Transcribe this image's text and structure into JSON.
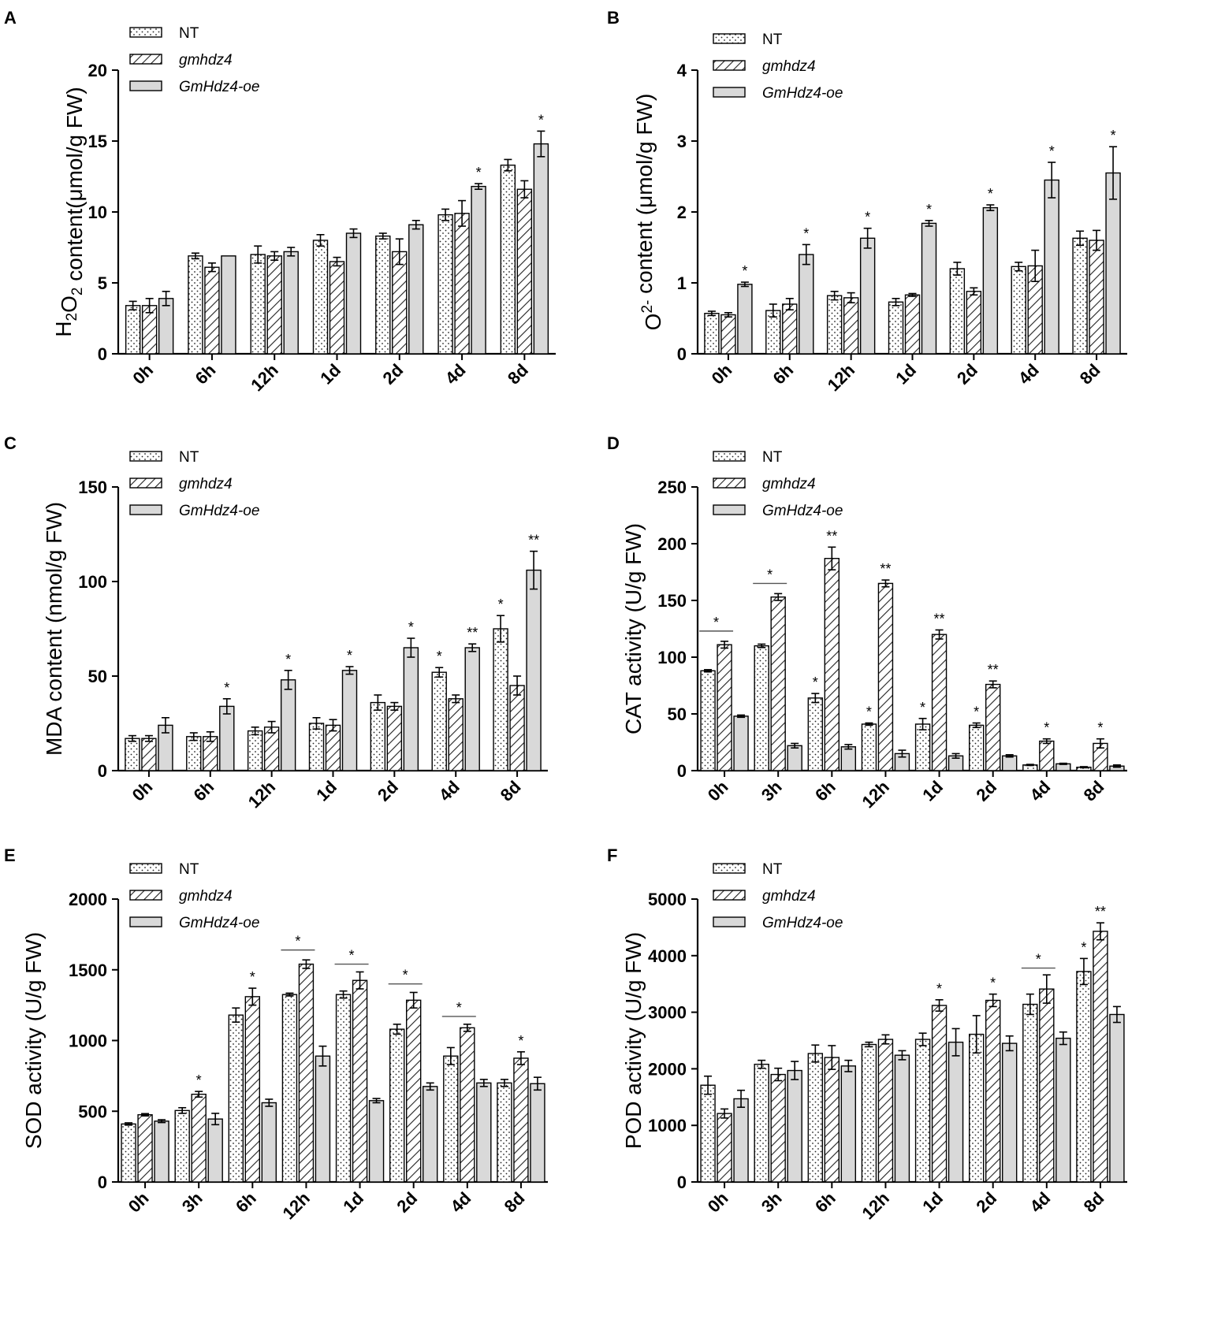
{
  "figure": {
    "series_names": [
      "NT",
      "gmhdz4",
      "GmHdz4-oe"
    ],
    "colors": {
      "bar_fill": "#ffffff",
      "oe_fill": "#d9d9d9",
      "ink": "#000000",
      "pattern_ink": "#222222"
    },
    "icons": {
      "NT": "dotted-pattern",
      "gmhdz4": "hatched-pattern",
      "GmHdz4-oe": "solid-gray"
    }
  },
  "chart_data": [
    {
      "id": "A",
      "type": "bar",
      "panel_letter": "A",
      "ylabel_parts": [
        {
          "t": "H",
          "s": ""
        },
        {
          "t": "2",
          "s": "sub"
        },
        {
          "t": "O",
          "s": ""
        },
        {
          "t": "2",
          "s": "sub"
        },
        {
          "t": " content(μmol/g FW)",
          "s": ""
        }
      ],
      "categories": [
        "0h",
        "6h",
        "12h",
        "1d",
        "2d",
        "4d",
        "8d"
      ],
      "ylim": [
        0,
        20
      ],
      "yticks": [
        0,
        5,
        10,
        15,
        20
      ],
      "legend": [
        "NT",
        "gmhdz4",
        "GmHdz4-oe"
      ],
      "series": [
        {
          "name": "NT",
          "values": [
            3.4,
            6.9,
            7.0,
            8.0,
            8.3,
            9.8,
            13.3
          ],
          "errors": [
            0.3,
            0.2,
            0.6,
            0.4,
            0.2,
            0.4,
            0.4
          ],
          "sig": [
            "",
            "",
            "",
            "",
            "",
            "",
            ""
          ]
        },
        {
          "name": "gmhdz4",
          "values": [
            3.4,
            6.1,
            6.9,
            6.5,
            7.2,
            9.9,
            11.6
          ],
          "errors": [
            0.5,
            0.3,
            0.3,
            0.3,
            0.9,
            0.9,
            0.6
          ],
          "sig": [
            "",
            "",
            "",
            "",
            "",
            "",
            ""
          ]
        },
        {
          "name": "GmHdz4-oe",
          "values": [
            3.9,
            6.9,
            7.2,
            8.5,
            9.1,
            11.8,
            14.8
          ],
          "errors": [
            0.5,
            0.0,
            0.3,
            0.3,
            0.3,
            0.2,
            0.9
          ],
          "sig": [
            "",
            "",
            "",
            "",
            "",
            "*",
            "*"
          ]
        }
      ],
      "brackets": []
    },
    {
      "id": "B",
      "type": "bar",
      "panel_letter": "B",
      "ylabel_parts": [
        {
          "t": "O",
          "s": ""
        },
        {
          "t": "2-",
          "s": "sup"
        },
        {
          "t": " content (μmol/g FW)",
          "s": ""
        }
      ],
      "categories": [
        "0h",
        "6h",
        "12h",
        "1d",
        "2d",
        "4d",
        "8d"
      ],
      "ylim": [
        0,
        4
      ],
      "yticks": [
        0,
        1,
        2,
        3,
        4
      ],
      "legend": [
        "NT",
        "gmhdz4",
        "GmHdz4-oe"
      ],
      "series": [
        {
          "name": "NT",
          "values": [
            0.57,
            0.61,
            0.82,
            0.73,
            1.2,
            1.23,
            1.63
          ],
          "errors": [
            0.03,
            0.09,
            0.06,
            0.05,
            0.09,
            0.06,
            0.1
          ],
          "sig": [
            "",
            "",
            "",
            "",
            "",
            "",
            ""
          ]
        },
        {
          "name": "gmhdz4",
          "values": [
            0.55,
            0.7,
            0.79,
            0.83,
            0.88,
            1.24,
            1.6
          ],
          "errors": [
            0.03,
            0.08,
            0.07,
            0.02,
            0.05,
            0.22,
            0.14
          ],
          "sig": [
            "",
            "",
            "",
            "",
            "",
            "",
            ""
          ]
        },
        {
          "name": "GmHdz4-oe",
          "values": [
            0.98,
            1.4,
            1.63,
            1.84,
            2.06,
            2.45,
            2.55
          ],
          "errors": [
            0.03,
            0.14,
            0.14,
            0.04,
            0.04,
            0.25,
            0.37
          ],
          "sig": [
            "*",
            "*",
            "*",
            "*",
            "*",
            "*",
            "*"
          ]
        }
      ],
      "brackets": []
    },
    {
      "id": "C",
      "type": "bar",
      "panel_letter": "C",
      "ylabel_parts": [
        {
          "t": "MDA content (nmol/g FW)",
          "s": ""
        }
      ],
      "categories": [
        "0h",
        "6h",
        "12h",
        "1d",
        "2d",
        "4d",
        "8d"
      ],
      "ylim": [
        0,
        150
      ],
      "yticks": [
        0,
        50,
        100,
        150
      ],
      "legend": [
        "NT",
        "gmhdz4",
        "GmHdz4-oe"
      ],
      "series": [
        {
          "name": "NT",
          "values": [
            17,
            18,
            21,
            25,
            36,
            52,
            75
          ],
          "errors": [
            1.5,
            2,
            2,
            3,
            4,
            2.5,
            7
          ],
          "sig": [
            "",
            "",
            "",
            "",
            "",
            "*",
            "*"
          ]
        },
        {
          "name": "gmhdz4",
          "values": [
            17,
            18,
            23,
            24,
            34,
            38,
            45
          ],
          "errors": [
            1.5,
            2.5,
            3,
            3,
            2,
            2,
            5
          ],
          "sig": [
            "",
            "",
            "",
            "",
            "",
            "",
            ""
          ]
        },
        {
          "name": "GmHdz4-oe",
          "values": [
            24,
            34,
            48,
            53,
            65,
            65,
            106
          ],
          "errors": [
            4,
            4,
            5,
            2,
            5,
            2,
            10
          ],
          "sig": [
            "",
            "*",
            "*",
            "*",
            "*",
            "**",
            "**"
          ]
        }
      ],
      "brackets": []
    },
    {
      "id": "D",
      "type": "bar",
      "panel_letter": "D",
      "ylabel_parts": [
        {
          "t": "CAT activity (U/g FW)",
          "s": ""
        }
      ],
      "categories": [
        "0h",
        "3h",
        "6h",
        "12h",
        "1d",
        "2d",
        "4d",
        "8d"
      ],
      "ylim": [
        0,
        250
      ],
      "yticks": [
        0,
        50,
        100,
        150,
        200,
        250
      ],
      "legend": [
        "NT",
        "gmhdz4",
        "GmHdz4-oe"
      ],
      "series": [
        {
          "name": "NT",
          "values": [
            88,
            110,
            64,
            41,
            41,
            40,
            5,
            3
          ],
          "errors": [
            1,
            1.5,
            4,
            1,
            5,
            2,
            0.5,
            0.5
          ],
          "sig": [
            "",
            "",
            "*",
            "*",
            "*",
            "*",
            "",
            ""
          ]
        },
        {
          "name": "gmhdz4",
          "values": [
            111,
            153,
            187,
            165,
            120,
            76,
            26,
            24
          ],
          "errors": [
            3,
            3,
            10,
            3,
            4,
            3,
            2,
            4
          ],
          "sig": [
            "",
            "",
            "**",
            "**",
            "**",
            "**",
            "*",
            "*"
          ]
        },
        {
          "name": "GmHdz4-oe",
          "values": [
            48,
            22,
            21,
            15,
            13,
            13,
            6,
            4
          ],
          "errors": [
            1,
            2,
            2,
            3,
            2,
            1,
            0.5,
            1
          ],
          "sig": [
            "",
            "",
            "",
            "",
            "",
            "",
            "",
            ""
          ]
        }
      ],
      "brackets": [
        {
          "group": 0,
          "value": 123,
          "label": "*"
        },
        {
          "group": 1,
          "value": 165,
          "label": "*"
        }
      ]
    },
    {
      "id": "E",
      "type": "bar",
      "panel_letter": "E",
      "ylabel_parts": [
        {
          "t": "SOD activity (U/g FW)",
          "s": ""
        }
      ],
      "categories": [
        "0h",
        "3h",
        "6h",
        "12h",
        "1d",
        "2d",
        "4d",
        "8d"
      ],
      "ylim": [
        0,
        2000
      ],
      "yticks": [
        0,
        500,
        1000,
        1500,
        2000
      ],
      "legend": [
        "NT",
        "gmhdz4",
        "GmHdz4-oe"
      ],
      "series": [
        {
          "name": "NT",
          "values": [
            410,
            505,
            1180,
            1325,
            1325,
            1080,
            890,
            700
          ],
          "errors": [
            8,
            20,
            50,
            10,
            25,
            35,
            60,
            25
          ],
          "sig": [
            "",
            "",
            "",
            "",
            "",
            "",
            "",
            ""
          ]
        },
        {
          "name": "gmhdz4",
          "values": [
            475,
            620,
            1310,
            1540,
            1425,
            1285,
            1090,
            875
          ],
          "errors": [
            8,
            20,
            60,
            30,
            60,
            55,
            25,
            45
          ],
          "sig": [
            "",
            "*",
            "*",
            "",
            "",
            "",
            "",
            "*"
          ]
        },
        {
          "name": "GmHdz4-oe",
          "values": [
            430,
            445,
            560,
            890,
            575,
            675,
            700,
            695
          ],
          "errors": [
            10,
            40,
            25,
            70,
            15,
            25,
            25,
            45
          ],
          "sig": [
            "",
            "",
            "",
            "",
            "",
            "",
            "",
            ""
          ]
        }
      ],
      "brackets": [
        {
          "group": 3,
          "value": 1640,
          "label": "*"
        },
        {
          "group": 4,
          "value": 1540,
          "label": "*"
        },
        {
          "group": 5,
          "value": 1400,
          "label": "*"
        },
        {
          "group": 6,
          "value": 1170,
          "label": "*"
        }
      ]
    },
    {
      "id": "F",
      "type": "bar",
      "panel_letter": "F",
      "ylabel_parts": [
        {
          "t": "POD activity (U/g FW)",
          "s": ""
        }
      ],
      "categories": [
        "0h",
        "3h",
        "6h",
        "12h",
        "1d",
        "2d",
        "4d",
        "8d"
      ],
      "ylim": [
        0,
        5000
      ],
      "yticks": [
        0,
        1000,
        2000,
        3000,
        4000,
        5000
      ],
      "legend": [
        "NT",
        "gmhdz4",
        "GmHdz4-oe"
      ],
      "series": [
        {
          "name": "NT",
          "values": [
            1710,
            2080,
            2270,
            2430,
            2520,
            2610,
            3140,
            3720
          ],
          "errors": [
            160,
            70,
            150,
            40,
            110,
            330,
            180,
            230
          ],
          "sig": [
            "",
            "",
            "",
            "",
            "",
            "",
            "",
            "*"
          ]
        },
        {
          "name": "gmhdz4",
          "values": [
            1210,
            1900,
            2200,
            2520,
            3120,
            3210,
            3410,
            4430
          ],
          "errors": [
            80,
            110,
            210,
            80,
            100,
            110,
            250,
            150
          ],
          "sig": [
            "",
            "",
            "",
            "",
            "*",
            "*",
            "",
            "**"
          ]
        },
        {
          "name": "GmHdz4-oe",
          "values": [
            1470,
            1970,
            2050,
            2240,
            2470,
            2450,
            2540,
            2960
          ],
          "errors": [
            150,
            160,
            100,
            80,
            240,
            130,
            110,
            140
          ],
          "sig": [
            "",
            "",
            "",
            "",
            "",
            "",
            "",
            ""
          ]
        }
      ],
      "brackets": [
        {
          "group": 6,
          "value": 3780,
          "label": "*"
        }
      ]
    }
  ]
}
